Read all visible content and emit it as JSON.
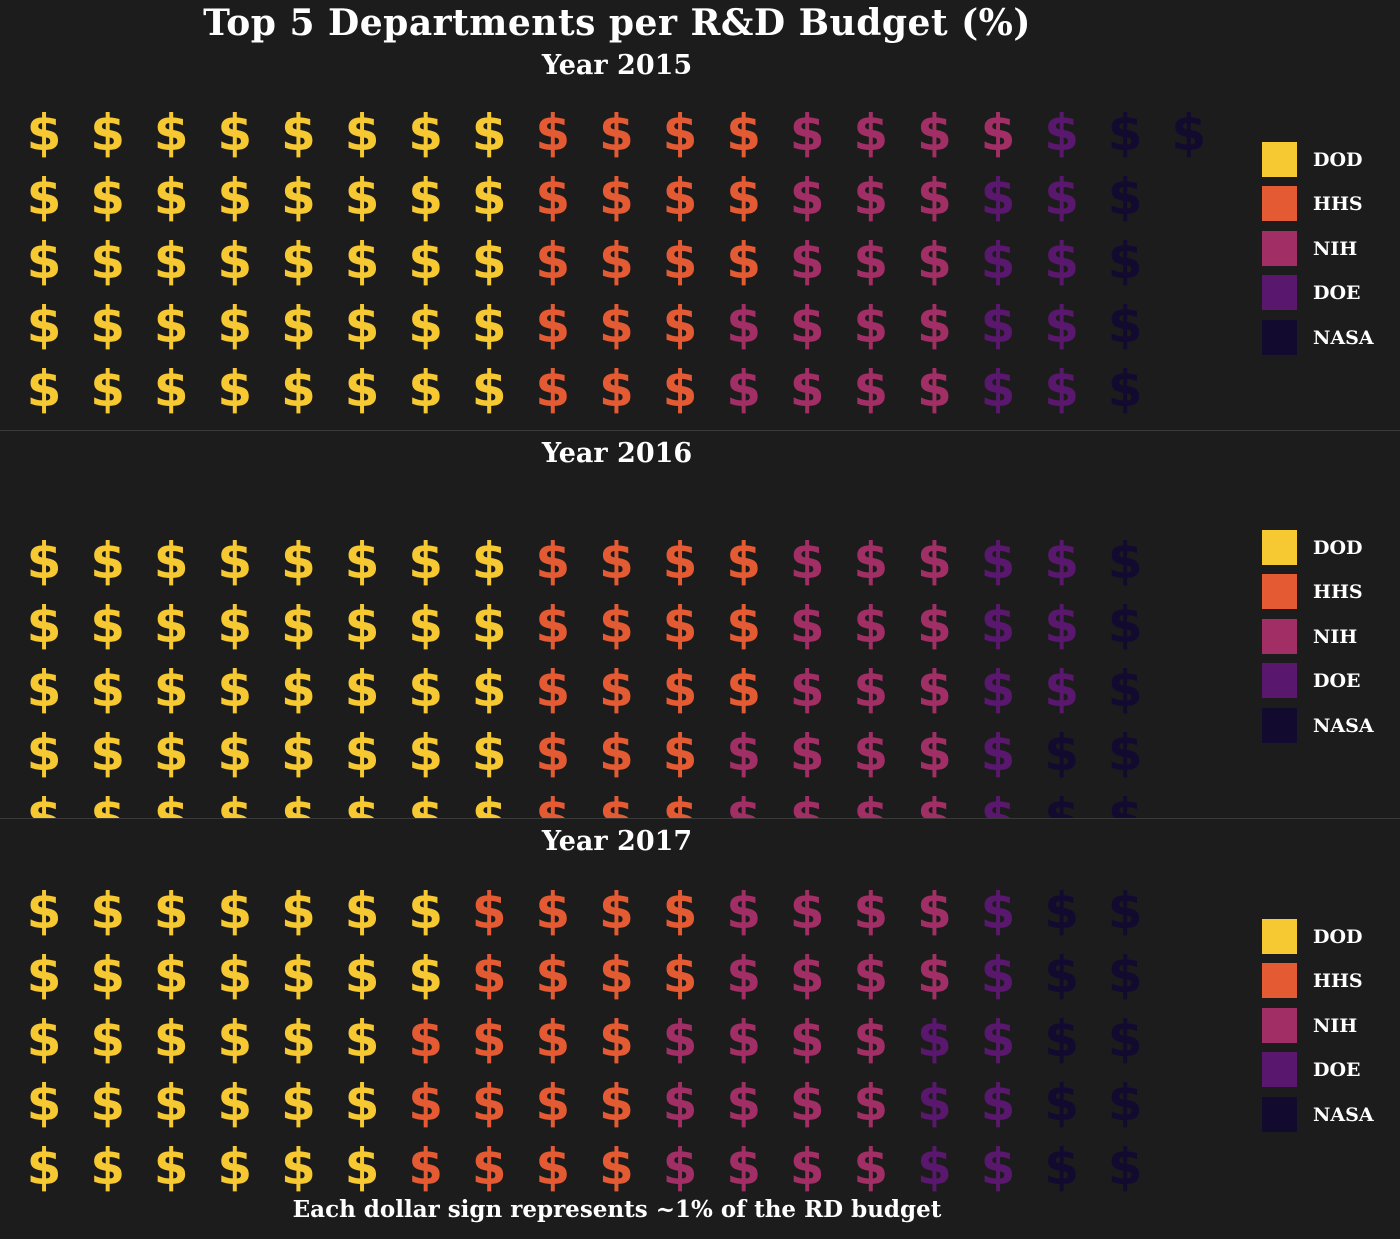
{
  "title": "Top 5 Departments per R&D Budget (%)",
  "caption": "Each dollar sign represents ~1% of the RD budget",
  "symbol": "$",
  "colors": {
    "background": "#1c1c1c",
    "DOD": "#f6c832",
    "HHS": "#e45b33",
    "NIH": "#a12f65",
    "DOE": "#5a176e",
    "NASA": "#130a30"
  },
  "chart_data": [
    {
      "type": "waffle",
      "title": "Year 2015",
      "legend": [
        "DOD",
        "HHS",
        "NIH",
        "DOE",
        "NASA"
      ],
      "legend_position": "right",
      "units": "dollar signs (~1% each)",
      "values": [
        {
          "name": "DOD",
          "value": 40
        },
        {
          "name": "HHS",
          "value": 18
        },
        {
          "name": "NIH",
          "value": 18
        },
        {
          "name": "DOE",
          "value": 9
        },
        {
          "name": "NASA",
          "value": 6
        }
      ]
    },
    {
      "type": "waffle",
      "title": "Year 2016",
      "legend": [
        "DOD",
        "HHS",
        "NIH",
        "DOE",
        "NASA"
      ],
      "legend_position": "right",
      "units": "dollar signs (~1% each)",
      "values": [
        {
          "name": "DOD",
          "value": 40
        },
        {
          "name": "HHS",
          "value": 18
        },
        {
          "name": "NIH",
          "value": 17
        },
        {
          "name": "DOE",
          "value": 8
        },
        {
          "name": "NASA",
          "value": 7
        }
      ]
    },
    {
      "type": "waffle",
      "title": "Year 2017",
      "legend": [
        "DOD",
        "HHS",
        "NIH",
        "DOE",
        "NASA"
      ],
      "legend_position": "right",
      "units": "dollar signs (~1% each)",
      "values": [
        {
          "name": "DOD",
          "value": 32
        },
        {
          "name": "HHS",
          "value": 20
        },
        {
          "name": "NIH",
          "value": 20
        },
        {
          "name": "DOE",
          "value": 8
        },
        {
          "name": "NASA",
          "value": 10
        }
      ]
    }
  ]
}
